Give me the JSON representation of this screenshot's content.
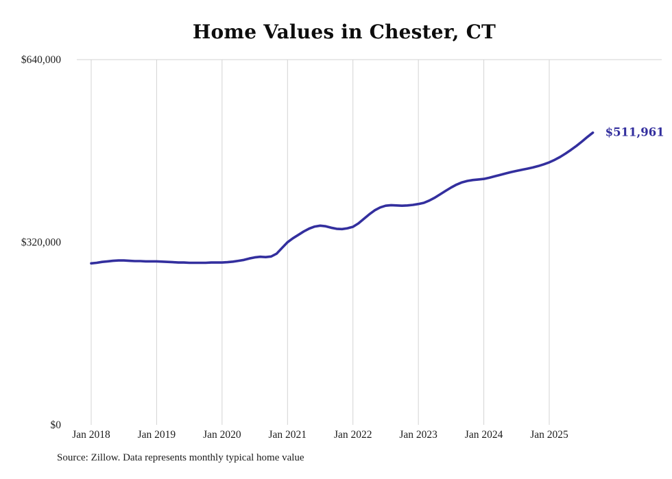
{
  "chart_data": {
    "type": "line",
    "title": "Home Values in Chester, CT",
    "xlabel": "",
    "ylabel": "",
    "ylim": [
      0,
      640000
    ],
    "y_ticks": [
      0,
      320000,
      640000
    ],
    "y_tick_labels": [
      "$0",
      "$320,000",
      "$640,000"
    ],
    "x_tick_labels": [
      "Jan 2018",
      "Jan 2019",
      "Jan 2020",
      "Jan 2021",
      "Jan 2022",
      "Jan 2023",
      "Jan 2024",
      "Jan 2025"
    ],
    "grid": "vertical-year-lines-plus-top-rule",
    "gridline_color": "#d3d3d3",
    "legend": "none",
    "end_label": "$511,961",
    "end_value": 511961,
    "series": [
      {
        "name": "Monthly typical home value",
        "color": "#332f9e",
        "x": [
          "2018-01",
          "2018-02",
          "2018-03",
          "2018-04",
          "2018-05",
          "2018-06",
          "2018-07",
          "2018-08",
          "2018-09",
          "2018-10",
          "2018-11",
          "2018-12",
          "2019-01",
          "2019-02",
          "2019-03",
          "2019-04",
          "2019-05",
          "2019-06",
          "2019-07",
          "2019-08",
          "2019-09",
          "2019-10",
          "2019-11",
          "2019-12",
          "2020-01",
          "2020-02",
          "2020-03",
          "2020-04",
          "2020-05",
          "2020-06",
          "2020-07",
          "2020-08",
          "2020-09",
          "2020-10",
          "2020-11",
          "2020-12",
          "2021-01",
          "2021-02",
          "2021-03",
          "2021-04",
          "2021-05",
          "2021-06",
          "2021-07",
          "2021-08",
          "2021-09",
          "2021-10",
          "2021-11",
          "2021-12",
          "2022-01",
          "2022-02",
          "2022-03",
          "2022-04",
          "2022-05",
          "2022-06",
          "2022-07",
          "2022-08",
          "2022-09",
          "2022-10",
          "2022-11",
          "2022-12",
          "2023-01",
          "2023-02",
          "2023-03",
          "2023-04",
          "2023-05",
          "2023-06",
          "2023-07",
          "2023-08",
          "2023-09",
          "2023-10",
          "2023-11",
          "2023-12",
          "2024-01",
          "2024-02",
          "2024-03",
          "2024-04",
          "2024-05",
          "2024-06",
          "2024-07",
          "2024-08",
          "2024-09",
          "2024-10",
          "2024-11",
          "2024-12",
          "2025-01",
          "2025-02",
          "2025-03",
          "2025-04",
          "2025-05",
          "2025-06",
          "2025-07",
          "2025-08",
          "2025-09"
        ],
        "values": [
          283000,
          284000,
          285500,
          286500,
          287500,
          288000,
          288000,
          287500,
          287000,
          287000,
          286500,
          286500,
          286500,
          286000,
          285500,
          285000,
          284500,
          284500,
          284000,
          284000,
          284000,
          284000,
          284500,
          284500,
          284500,
          285000,
          286000,
          287500,
          289000,
          291500,
          293500,
          294500,
          294000,
          295000,
          300000,
          310000,
          320000,
          327000,
          333000,
          339000,
          344000,
          347500,
          349000,
          348000,
          345500,
          343500,
          343000,
          344500,
          347000,
          353000,
          361000,
          369000,
          376000,
          381000,
          384000,
          385000,
          384500,
          384000,
          384500,
          385500,
          387000,
          389000,
          393000,
          398000,
          404000,
          410000,
          416000,
          421000,
          425000,
          427500,
          429000,
          430000,
          431000,
          433000,
          435500,
          438000,
          440500,
          443000,
          445000,
          447000,
          449000,
          451000,
          453500,
          456500,
          460000,
          464500,
          469500,
          475500,
          482000,
          489000,
          496500,
          504500,
          511961
        ]
      }
    ]
  },
  "source": {
    "text": "Source: Zillow. Data represents monthly typical home value"
  }
}
